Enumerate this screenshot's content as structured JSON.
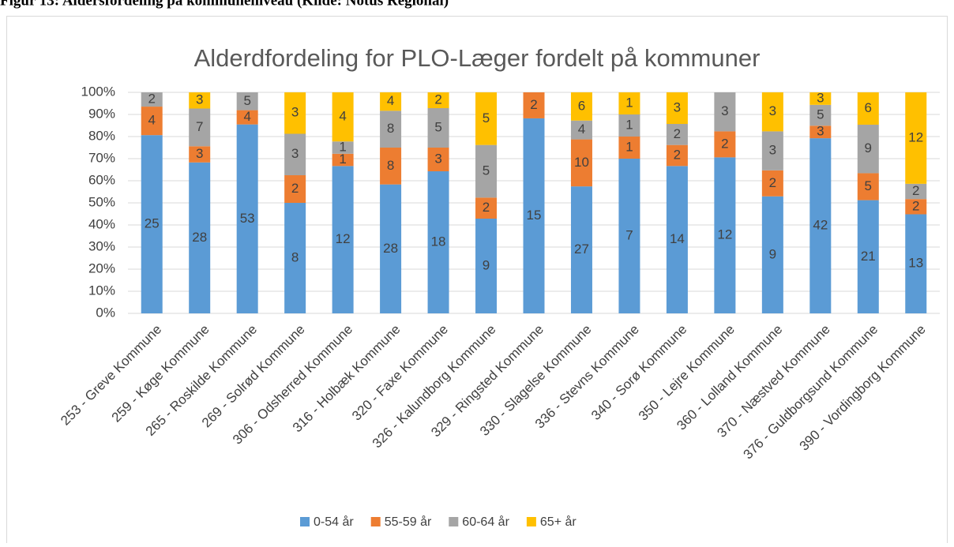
{
  "heading": "Figur 13: Aldersfordeling på kommuneniveau (Kilde: Notus Regional)",
  "chart_data": {
    "type": "bar",
    "stacking": "percent",
    "title": "Alderdfordeling for PLO-Læger fordelt på kommuner",
    "categories": [
      "253 - Greve Kommune",
      "259 - Køge Kommune",
      "265 - Roskilde Kommune",
      "269 - Solrød Kommune",
      "306 - Odsherred Kommune",
      "316 - Holbæk Kommune",
      "320 - Faxe Kommune",
      "326 - Kalundborg Kommune",
      "329 - Ringsted Kommune",
      "330 - Slagelse Kommune",
      "336 - Stevns Kommune",
      "340 - Sorø Kommune",
      "350 - Lejre Kommune",
      "360 - Lolland Kommune",
      "370 - Næstved Kommune",
      "376 - Guldborgsund Kommune",
      "390 - Vordingborg Kommune"
    ],
    "series": [
      {
        "name": "0-54 år",
        "color": "#5b9bd5",
        "values": [
          25,
          28,
          53,
          8,
          12,
          28,
          18,
          9,
          15,
          27,
          7,
          14,
          12,
          9,
          42,
          21,
          13
        ]
      },
      {
        "name": "55-59 år",
        "color": "#ed7d31",
        "values": [
          4,
          3,
          4,
          2,
          1,
          8,
          3,
          2,
          2,
          10,
          1,
          2,
          2,
          2,
          3,
          5,
          2
        ]
      },
      {
        "name": "60-64 år",
        "color": "#a5a5a5",
        "values": [
          2,
          7,
          5,
          3,
          1,
          8,
          5,
          5,
          0,
          4,
          1,
          2,
          3,
          3,
          5,
          9,
          2
        ]
      },
      {
        "name": "65+ år",
        "color": "#ffc000",
        "values": [
          0,
          3,
          0,
          3,
          4,
          4,
          2,
          5,
          0,
          6,
          1,
          3,
          0,
          3,
          3,
          6,
          12
        ]
      }
    ],
    "ylim": [
      0,
      100
    ],
    "yticks": [
      {
        "value": 0,
        "label": "0%"
      },
      {
        "value": 10,
        "label": "10%"
      },
      {
        "value": 20,
        "label": "20%"
      },
      {
        "value": 30,
        "label": "30%"
      },
      {
        "value": 40,
        "label": "40%"
      },
      {
        "value": 50,
        "label": "50%"
      },
      {
        "value": 60,
        "label": "60%"
      },
      {
        "value": 70,
        "label": "70%"
      },
      {
        "value": 80,
        "label": "80%"
      },
      {
        "value": 90,
        "label": "90%"
      },
      {
        "value": 100,
        "label": "100%"
      }
    ],
    "grid": true,
    "legend": "bottom"
  }
}
